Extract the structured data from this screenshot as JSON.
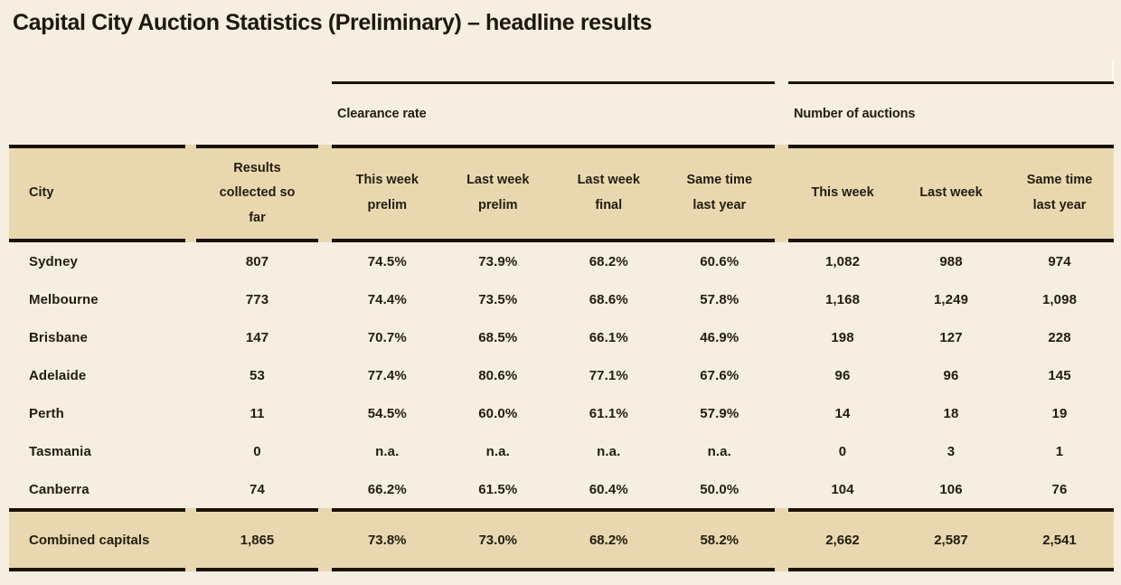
{
  "page": {
    "title": "Capital City Auction Statistics (Preliminary) – headline results"
  },
  "colors": {
    "page_background": "#f6eee1",
    "band_background": "#e9d8af",
    "border": "#1b1206",
    "text": "#231c12"
  },
  "table": {
    "group_headers": [
      {
        "label": "Clearance rate"
      },
      {
        "label": "Number of auctions"
      }
    ],
    "headers": {
      "city": "City",
      "results": "Results collected so far",
      "clearance": [
        "This week prelim",
        "Last week prelim",
        "Last week final",
        "Same time last year"
      ],
      "auctions": [
        "This week",
        "Last week",
        "Same time last year"
      ]
    },
    "rows": [
      {
        "city": "Sydney",
        "results": "807",
        "clearance": [
          "74.5%",
          "73.9%",
          "68.2%",
          "60.6%"
        ],
        "auctions": [
          "1,082",
          "988",
          "974"
        ]
      },
      {
        "city": "Melbourne",
        "results": "773",
        "clearance": [
          "74.4%",
          "73.5%",
          "68.6%",
          "57.8%"
        ],
        "auctions": [
          "1,168",
          "1,249",
          "1,098"
        ]
      },
      {
        "city": "Brisbane",
        "results": "147",
        "clearance": [
          "70.7%",
          "68.5%",
          "66.1%",
          "46.9%"
        ],
        "auctions": [
          "198",
          "127",
          "228"
        ]
      },
      {
        "city": "Adelaide",
        "results": "53",
        "clearance": [
          "77.4%",
          "80.6%",
          "77.1%",
          "67.6%"
        ],
        "auctions": [
          "96",
          "96",
          "145"
        ]
      },
      {
        "city": "Perth",
        "results": "11",
        "clearance": [
          "54.5%",
          "60.0%",
          "61.1%",
          "57.9%"
        ],
        "auctions": [
          "14",
          "18",
          "19"
        ]
      },
      {
        "city": "Tasmania",
        "results": "0",
        "clearance": [
          "n.a.",
          "n.a.",
          "n.a.",
          "n.a."
        ],
        "auctions": [
          "0",
          "3",
          "1"
        ]
      },
      {
        "city": "Canberra",
        "results": "74",
        "clearance": [
          "66.2%",
          "61.5%",
          "60.4%",
          "50.0%"
        ],
        "auctions": [
          "104",
          "106",
          "76"
        ]
      }
    ],
    "total": {
      "city": "Combined capitals",
      "results": "1,865",
      "clearance": [
        "73.8%",
        "73.0%",
        "68.2%",
        "58.2%"
      ],
      "auctions": [
        "2,662",
        "2,587",
        "2,541"
      ]
    }
  }
}
